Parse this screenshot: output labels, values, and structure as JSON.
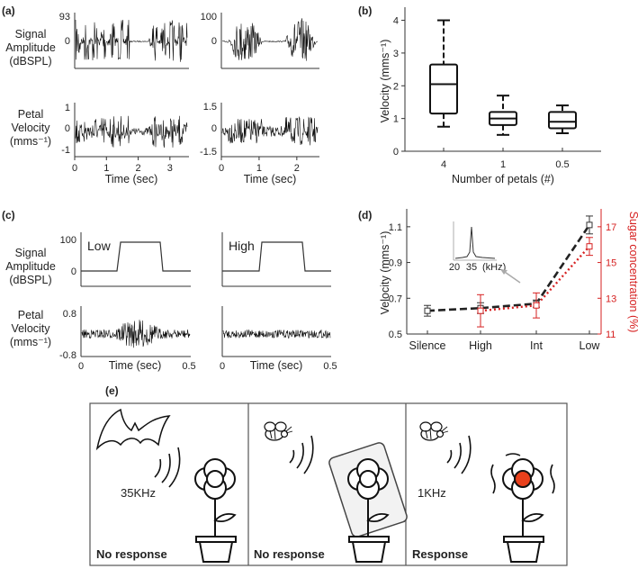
{
  "chart_data": [
    {
      "panel": "(a)",
      "type": "line",
      "description_rows": [
        "Signal Amplitude (dBSPL)",
        "Petal Velocity (mms⁻¹)"
      ],
      "row_labels": [
        [
          "Signal",
          "Amplitude",
          "(dBSPL)"
        ],
        [
          "Petal",
          "Velocity",
          "(mms⁻¹)"
        ]
      ],
      "left": {
        "top_yticks": [
          93,
          0
        ],
        "bottom_yticks": [
          1,
          0,
          -1
        ],
        "xticks": [
          0,
          1,
          2,
          3
        ],
        "xlim": [
          0,
          3.6
        ],
        "xlabel": "Time (sec)"
      },
      "right": {
        "top_yticks": [
          100,
          0
        ],
        "bottom_yticks": [
          1.5,
          0,
          -1.5
        ],
        "xticks": [
          0,
          1,
          2
        ],
        "xlim": [
          0,
          2.6
        ],
        "xlabel": "Time (sec)"
      }
    },
    {
      "panel": "(b)",
      "type": "box",
      "categories": [
        "4",
        "1",
        "0.5"
      ],
      "boxes": [
        {
          "min": 0.75,
          "q1": 1.15,
          "median": 2.05,
          "q3": 2.65,
          "max": 4.0
        },
        {
          "min": 0.5,
          "q1": 0.8,
          "median": 1.0,
          "q3": 1.2,
          "max": 1.7
        },
        {
          "min": 0.55,
          "q1": 0.7,
          "median": 0.9,
          "q3": 1.2,
          "max": 1.4
        }
      ],
      "xlabel": "Number of petals (#)",
      "ylabel": "Velocity (mms⁻¹)",
      "ylim": [
        0,
        4.4
      ],
      "yticks": [
        0,
        1,
        2,
        3,
        4
      ]
    },
    {
      "panel": "(c)",
      "type": "line",
      "row_labels": [
        [
          "Signal",
          "Amplitude",
          "(dBSPL)"
        ],
        [
          "Petal",
          "Velocity",
          "(mms⁻¹)"
        ]
      ],
      "top_yticks": [
        100,
        0
      ],
      "bottom_yticks": [
        0.8,
        -0.8
      ],
      "xticks": [
        0,
        0.5
      ],
      "xlim": [
        0,
        0.5
      ],
      "xlabel": "Time (sec)",
      "conditions": [
        "Low",
        "High"
      ]
    },
    {
      "panel": "(d)",
      "type": "line",
      "categories": [
        "Silence",
        "High",
        "Int",
        "Low"
      ],
      "series": [
        {
          "name": "Velocity",
          "values": [
            0.63,
            0.645,
            0.67,
            1.11
          ],
          "err": [
            0.03,
            0.03,
            0.02,
            0.05
          ],
          "color": "#222222"
        },
        {
          "name": "Sugar concentration",
          "values": [
            null,
            12.3,
            12.6,
            15.9
          ],
          "err": [
            null,
            0.9,
            0.7,
            0.5
          ],
          "color": "#d62020"
        }
      ],
      "ylabel": "Velocity (mms⁻¹)",
      "ylabel_right": "Sugar concentration (%)",
      "ylim": [
        0.5,
        1.2
      ],
      "yticks": [
        0.5,
        0.7,
        0.9,
        1.1
      ],
      "ylim_right": [
        11,
        18
      ],
      "yticks_right": [
        11,
        13,
        15,
        17
      ],
      "inset": {
        "xticks": [
          "20",
          "35"
        ],
        "xunit": "(kHz)"
      }
    },
    {
      "panel": "(e)",
      "type": "diagram",
      "scenes": [
        {
          "emitter": "bat",
          "frequency_label": "35KHz",
          "caption": "No response"
        },
        {
          "emitter": "bee",
          "frequency_label": "",
          "caption": "No response"
        },
        {
          "emitter": "bee",
          "frequency_label": "1KHz",
          "caption": "Response"
        }
      ]
    }
  ]
}
